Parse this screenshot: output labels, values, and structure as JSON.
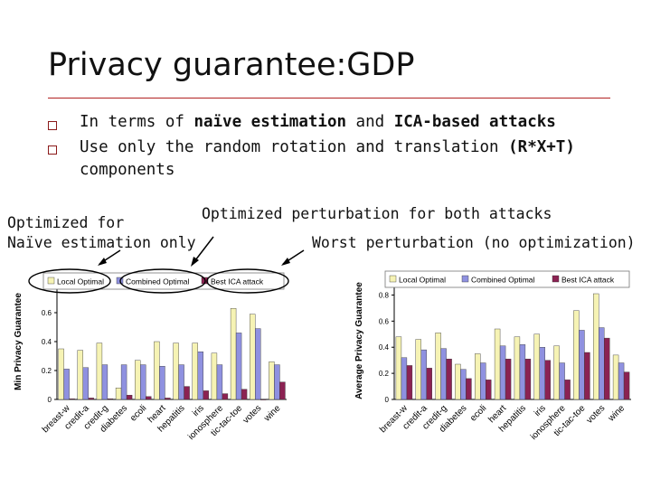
{
  "slide": {
    "title": "Privacy guarantee:GDP",
    "bullets": [
      {
        "pre": "In terms of ",
        "b1": "naïve estimation",
        "mid": " and ",
        "b2": "ICA-based attacks",
        "post": ""
      },
      {
        "pre": "Use only the random rotation and translation ",
        "b1": "(R*X+T)",
        "mid": "",
        "b2": "",
        "post": "components"
      }
    ],
    "annotations": {
      "left": [
        "Optimized for",
        "Naïve estimation only"
      ],
      "middle": "Optimized perturbation for both attacks",
      "right": "Worst perturbation (no optimization)"
    }
  },
  "colors": {
    "local_optimal": "#f6f3b4",
    "combined_optimal": "#8f91e0",
    "best_ica_attack": "#8b2252",
    "bullet": "#8b1a1a",
    "rule": "#b22222"
  },
  "chart_data": [
    {
      "type": "bar",
      "ylabel": "Min Privacy Guarantee",
      "ylim": [
        0,
        0.8
      ],
      "yticks": [
        "0",
        "0.2",
        "0.4",
        "0.6"
      ],
      "categories": [
        "breast-w",
        "credit-a",
        "credit-g",
        "diabetes",
        "ecoli",
        "heart",
        "hepatitis",
        "iris",
        "ionosphere",
        "tic-tac-toe",
        "votes",
        "wine"
      ],
      "series": [
        {
          "name": "Local Optimal",
          "values": [
            0.35,
            0.34,
            0.39,
            0.08,
            0.27,
            0.4,
            0.39,
            0.39,
            0.32,
            0.63,
            0.59,
            0.26
          ]
        },
        {
          "name": "Combined Optimal",
          "values": [
            0.21,
            0.22,
            0.24,
            0.24,
            0.24,
            0.23,
            0.24,
            0.33,
            0.24,
            0.46,
            0.49,
            0.24
          ]
        },
        {
          "name": "Best ICA attack",
          "values": [
            0.005,
            0.01,
            0.005,
            0.03,
            0.02,
            0.01,
            0.09,
            0.06,
            0.04,
            0.07,
            0.0,
            0.12
          ]
        }
      ],
      "legend": "top",
      "grid": false
    },
    {
      "type": "bar",
      "ylabel": "Average Privacy Guarantee",
      "ylim": [
        0,
        0.9
      ],
      "yticks": [
        "0",
        "0.2",
        "0.4",
        "0.6",
        "0.8"
      ],
      "categories": [
        "breast-w",
        "credit-a",
        "credit-g",
        "diabetes",
        "ecoli",
        "heart",
        "hepatitis",
        "iris",
        "ionosphere",
        "tic-tac-toe",
        "votes",
        "wine"
      ],
      "series": [
        {
          "name": "Local Optimal",
          "values": [
            0.48,
            0.46,
            0.51,
            0.27,
            0.35,
            0.54,
            0.48,
            0.5,
            0.41,
            0.68,
            0.81,
            0.34
          ]
        },
        {
          "name": "Combined Optimal",
          "values": [
            0.32,
            0.38,
            0.39,
            0.23,
            0.28,
            0.41,
            0.42,
            0.4,
            0.28,
            0.53,
            0.55,
            0.28
          ]
        },
        {
          "name": "Best ICA attack",
          "values": [
            0.26,
            0.24,
            0.31,
            0.16,
            0.15,
            0.31,
            0.31,
            0.3,
            0.15,
            0.36,
            0.47,
            0.21
          ]
        }
      ],
      "legend": "top",
      "grid": false
    }
  ]
}
